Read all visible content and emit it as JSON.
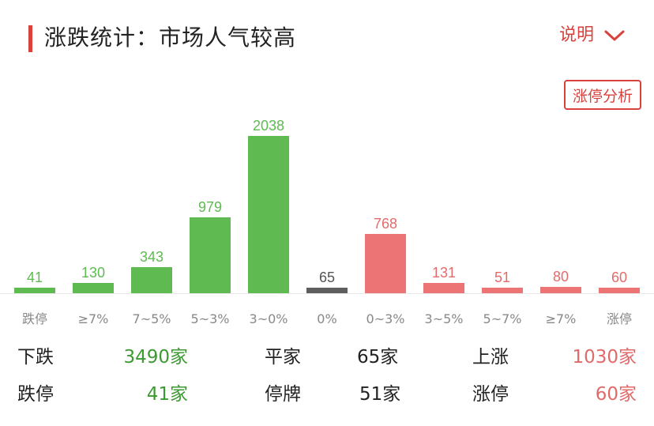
{
  "header": {
    "title": "涨跌统计：市场人气较高",
    "explain_label": "说明",
    "limit_analysis_label": "涨停分析"
  },
  "colors": {
    "down": "#5fba52",
    "flat": "#5e5e5e",
    "up": "#ec7474",
    "accent": "#d9423c",
    "axis_text": "#888888"
  },
  "chart_data": {
    "type": "bar",
    "categories": [
      "跌停",
      "≥7%",
      "7~5%",
      "5~3%",
      "3~0%",
      "0%",
      "0~3%",
      "3~5%",
      "5~7%",
      "≥7%",
      "涨停"
    ],
    "values": [
      41,
      130,
      343,
      979,
      2038,
      65,
      768,
      131,
      51,
      80,
      60
    ],
    "groups": [
      "down",
      "down",
      "down",
      "down",
      "down",
      "flat",
      "up",
      "up",
      "up",
      "up",
      "up"
    ],
    "title": "",
    "xlabel": "",
    "ylabel": "",
    "ylim": [
      0,
      2038
    ],
    "grid": false,
    "legend": "none"
  },
  "stats": {
    "down_total": {
      "label": "下跌",
      "value": "3490家"
    },
    "limit_down": {
      "label": "跌停",
      "value": "41家"
    },
    "flat": {
      "label": "平家",
      "value": "65家"
    },
    "suspended": {
      "label": "停牌",
      "value": "51家"
    },
    "up_total": {
      "label": "上涨",
      "value": "1030家"
    },
    "limit_up": {
      "label": "涨停",
      "value": "60家"
    }
  }
}
